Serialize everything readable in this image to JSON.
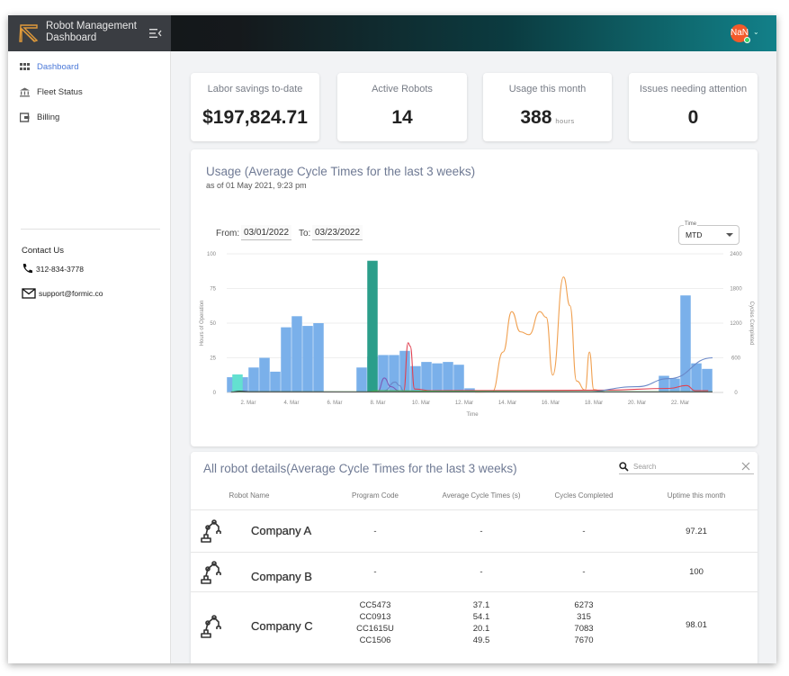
{
  "app": {
    "title": "Robot Management Dashboard",
    "title_line1": "Robot Management",
    "title_line2": "Dashboard",
    "avatar_text": "NaN"
  },
  "sidebar": {
    "items": [
      {
        "label": "Dashboard",
        "icon": "grid-icon",
        "active": true
      },
      {
        "label": "Fleet Status",
        "icon": "bank-icon",
        "active": false
      },
      {
        "label": "Billing",
        "icon": "wallet-icon",
        "active": false
      }
    ],
    "contact": {
      "title": "Contact Us",
      "phone": "312-834-3778",
      "email": "support@formic.co"
    }
  },
  "stats": [
    {
      "label": "Labor savings to-date",
      "value": "$197,824.71",
      "unit": ""
    },
    {
      "label": "Active Robots",
      "value": "14",
      "unit": ""
    },
    {
      "label": "Usage this month",
      "value": "388",
      "unit": "hours"
    },
    {
      "label": "Issues needing attention",
      "value": "0",
      "unit": ""
    }
  ],
  "usage": {
    "title": "Usage (Average Cycle Times for the last 3 weeks)",
    "subtitle": "as of 01 May 2021, 9:23 pm",
    "from_label": "From:",
    "from_value": "03/01/2022",
    "to_label": "To:",
    "to_value": "03/23/2022",
    "time_select_label": "Time",
    "time_select_value": "MTD"
  },
  "chart_data": {
    "type": "bar",
    "xlabel": "Time",
    "ylabel": "Hours of Operation",
    "y2label": "Cycles Completed",
    "ylim": [
      0,
      100
    ],
    "y2lim": [
      0,
      2400
    ],
    "yticks": [
      0,
      25,
      50,
      75,
      100
    ],
    "y2ticks": [
      0,
      600,
      1200,
      1800,
      2400
    ],
    "xlim": [
      1,
      24
    ],
    "xticks": [
      {
        "x": 2,
        "label": "2. Mar"
      },
      {
        "x": 4,
        "label": "4. Mar"
      },
      {
        "x": 6,
        "label": "6. Mar"
      },
      {
        "x": 8,
        "label": "8. Mar"
      },
      {
        "x": 10,
        "label": "10. Mar"
      },
      {
        "x": 12,
        "label": "12. Mar"
      },
      {
        "x": 14,
        "label": "14. Mar"
      },
      {
        "x": 16,
        "label": "16. Mar"
      },
      {
        "x": 18,
        "label": "18. Mar"
      },
      {
        "x": 20,
        "label": "20. Mar"
      },
      {
        "x": 22,
        "label": "22. Mar"
      }
    ],
    "bars": [
      {
        "color": "#7ab0ea",
        "points": [
          [
            1.25,
            11
          ],
          [
            1.75,
            11
          ],
          [
            2.25,
            18
          ],
          [
            2.75,
            25
          ],
          [
            3.25,
            15
          ],
          [
            3.75,
            47
          ],
          [
            4.25,
            55
          ],
          [
            4.75,
            48
          ],
          [
            5.25,
            50
          ],
          [
            6,
            0
          ],
          [
            7.25,
            18
          ],
          [
            7.75,
            26
          ],
          [
            8.25,
            27
          ],
          [
            8.75,
            27
          ],
          [
            9.25,
            30
          ],
          [
            9.75,
            19
          ],
          [
            10.25,
            22
          ],
          [
            10.75,
            21
          ],
          [
            11.25,
            22
          ],
          [
            11.75,
            20
          ],
          [
            12.25,
            3
          ],
          [
            21.25,
            12
          ],
          [
            21.75,
            10
          ],
          [
            22.25,
            70
          ],
          [
            22.75,
            21
          ],
          [
            23.25,
            17
          ]
        ]
      },
      {
        "color": "#2b9e8a",
        "points": [
          [
            7.75,
            95
          ]
        ]
      },
      {
        "color": "#63e0d0",
        "points": [
          [
            1.5,
            13
          ]
        ]
      }
    ],
    "series": [
      {
        "color": "#f0a050",
        "values": [
          [
            12.5,
            0
          ],
          [
            13.3,
            10
          ],
          [
            13.8,
            700
          ],
          [
            14.2,
            1400
          ],
          [
            14.6,
            1050
          ],
          [
            15.0,
            1000
          ],
          [
            15.5,
            1400
          ],
          [
            15.8,
            1300
          ],
          [
            16.1,
            300
          ],
          [
            16.6,
            2000
          ],
          [
            16.9,
            1500
          ],
          [
            17.2,
            200
          ],
          [
            17.6,
            40
          ],
          [
            17.8,
            700
          ],
          [
            18.0,
            50
          ],
          [
            18.5,
            0
          ]
        ]
      },
      {
        "color": "#e04050",
        "values": [
          [
            9.2,
            30
          ],
          [
            9.4,
            860
          ],
          [
            9.5,
            800
          ],
          [
            9.7,
            60
          ],
          [
            10.5,
            30
          ],
          [
            18.5,
            40
          ],
          [
            21.5,
            70
          ],
          [
            22.3,
            120
          ],
          [
            22.7,
            30
          ],
          [
            23.3,
            30
          ]
        ]
      },
      {
        "color": "#6a88c8",
        "values": [
          [
            8.3,
            30
          ],
          [
            8.8,
            180
          ],
          [
            9.0,
            120
          ],
          [
            9.2,
            20
          ],
          [
            17.5,
            10
          ],
          [
            20.0,
            100
          ],
          [
            21.5,
            240
          ],
          [
            23.5,
            600
          ]
        ]
      },
      {
        "color": "#7c5cb8",
        "values": [
          [
            8.0,
            20
          ],
          [
            8.3,
            250
          ],
          [
            8.6,
            100
          ],
          [
            9.0,
            25
          ]
        ]
      },
      {
        "color": "#4caf50",
        "values": [
          [
            1.2,
            10
          ],
          [
            7.5,
            10
          ],
          [
            8.0,
            30
          ],
          [
            12.0,
            20
          ],
          [
            23.5,
            10
          ]
        ]
      },
      {
        "color": "#222222",
        "values": [
          [
            1.2,
            5
          ],
          [
            1.6,
            20
          ],
          [
            2.2,
            10
          ],
          [
            12.0,
            8
          ],
          [
            23.5,
            8
          ]
        ]
      }
    ]
  },
  "robots": {
    "title": "All robot details(Average Cycle Times for the last 3 weeks)",
    "search_placeholder": "Search",
    "columns": [
      "Robot Name",
      "Program Code",
      "Average Cycle Times (s)",
      "Cycles Completed",
      "Uptime this month"
    ],
    "rows": [
      {
        "name": "Company A",
        "codes": [
          "-"
        ],
        "avg": [
          "-"
        ],
        "cycles": [
          "-"
        ],
        "uptime": "97.21"
      },
      {
        "name": "Company B",
        "codes": [
          "-"
        ],
        "avg": [
          "-"
        ],
        "cycles": [
          "-"
        ],
        "uptime": "100"
      },
      {
        "name": "Company C",
        "codes": [
          "CC5473",
          "CC0913",
          "CC1615U",
          "CC1506"
        ],
        "avg": [
          "37.1",
          "54.1",
          "20.1",
          "49.5"
        ],
        "cycles": [
          "6273",
          "315",
          "7083",
          "7670"
        ],
        "uptime": "98.01"
      }
    ]
  },
  "colors": {
    "accent": "#4a78d8",
    "title_text": "#6f7a94",
    "avatar": "#f35a2a"
  }
}
